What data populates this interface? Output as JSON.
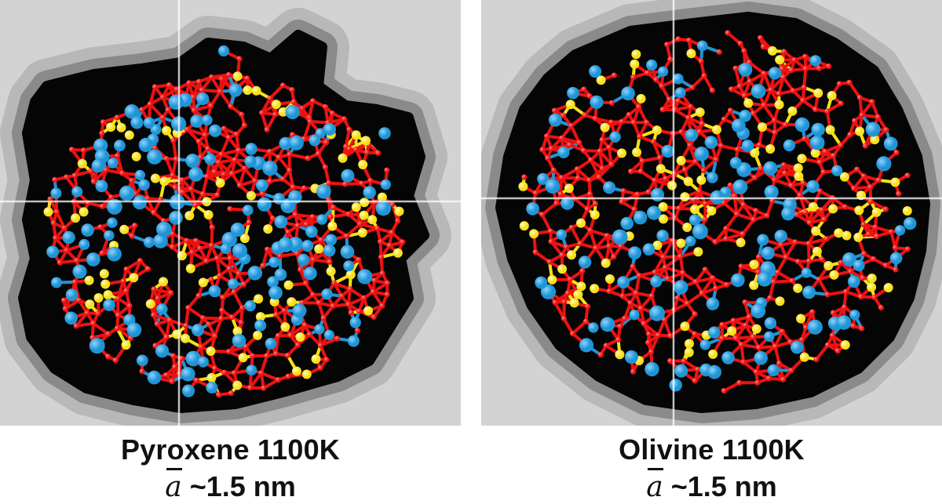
{
  "panels": [
    {
      "name": "Pyroxene 1100K",
      "symbol": "a",
      "size_text": "~1.5 nm",
      "shape": "irregular",
      "seed": 17
    },
    {
      "name": "Olivine 1100K",
      "symbol": "a",
      "size_text": "~1.5 nm",
      "shape": "round",
      "seed": 91
    }
  ],
  "colors": {
    "background": "#d3d3d3",
    "halo_outer": "#b8b8b8",
    "halo_mid": "#8a8a8a",
    "shadow": "#050505",
    "bond": "#ee1111",
    "oxygen": "#ee1111",
    "silicon": "#f7e017",
    "metal": "#1f95d6",
    "crosshair": "#ffffff"
  }
}
